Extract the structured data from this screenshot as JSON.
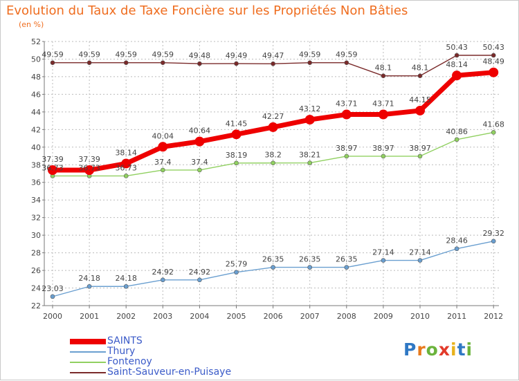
{
  "header": {
    "title": "Evolution du Taux de Taxe Foncière sur les Propriétés Non Bâties",
    "subtitle": "(en %)"
  },
  "logo": {
    "text": "Proxiti",
    "letters": [
      "P",
      "r",
      "o",
      "x",
      "i",
      "t",
      "i"
    ],
    "colors": [
      "#2f78c4",
      "#e87a1d",
      "#6bb33c",
      "#e23a2a",
      "#e8b21d",
      "#2f78c4",
      "#6bb33c"
    ]
  },
  "colors": {
    "axis": "#777777",
    "grid": "#bbbbbb",
    "label": "#444444"
  },
  "chart_data": {
    "type": "line",
    "title": "Evolution du Taux de Taxe Foncière sur les Propriétés Non Bâties",
    "ylabel": "(en %)",
    "xlabel": "",
    "ylim": [
      22,
      52
    ],
    "yticks": [
      22,
      24,
      26,
      28,
      30,
      32,
      34,
      36,
      38,
      40,
      42,
      44,
      46,
      48,
      50,
      52
    ],
    "categories": [
      "2000",
      "2001",
      "2002",
      "2003",
      "2004",
      "2005",
      "2006",
      "2007",
      "2008",
      "2009",
      "2010",
      "2011",
      "2012"
    ],
    "legend_position": "bottom-left",
    "series": [
      {
        "name": "Saint-Sauveur-en-Puisaye",
        "color": "#7a2a2a",
        "width": 1.4,
        "marker": 3,
        "values": [
          49.59,
          49.59,
          49.59,
          49.59,
          49.48,
          49.49,
          49.47,
          49.59,
          49.59,
          48.1,
          48.1,
          50.43,
          50.43
        ],
        "labels": [
          "49.59",
          "49.59",
          "49.59",
          "49.59",
          "49.48",
          "49.49",
          "49.47",
          "49.59",
          "49.59",
          "48.1",
          "48.1",
          "50.43",
          "50.43"
        ]
      },
      {
        "name": "Fontenoy",
        "color": "#90d060",
        "width": 1.4,
        "marker": 3,
        "values": [
          36.73,
          36.73,
          36.73,
          37.4,
          37.4,
          38.19,
          38.2,
          38.21,
          38.97,
          38.97,
          38.97,
          40.86,
          41.68
        ],
        "labels": [
          "36.73",
          "36.73",
          "36.73",
          "37.4",
          "37.4",
          "38.19",
          "38.2",
          "38.21",
          "38.97",
          "38.97",
          "38.97",
          "40.86",
          "41.68"
        ]
      },
      {
        "name": "Thury",
        "color": "#6a9fd0",
        "width": 1.4,
        "marker": 3,
        "values": [
          23.03,
          24.18,
          24.18,
          24.92,
          24.92,
          25.79,
          26.35,
          26.35,
          26.35,
          27.14,
          27.14,
          28.46,
          29.32
        ],
        "labels": [
          "23.03",
          "24.18",
          "24.18",
          "24.92",
          "24.92",
          "25.79",
          "26.35",
          "26.35",
          "26.35",
          "27.14",
          "27.14",
          "28.46",
          "29.32"
        ]
      },
      {
        "name": "SAINTS",
        "color": "#ee0000",
        "width": 7,
        "marker": 7,
        "values": [
          37.39,
          37.39,
          38.14,
          40.04,
          40.64,
          41.45,
          42.27,
          43.12,
          43.71,
          43.71,
          44.15,
          48.14,
          48.49
        ],
        "labels": [
          "37.39",
          "37.39",
          "38.14",
          "40.04",
          "40.64",
          "41.45",
          "42.27",
          "43.12",
          "43.71",
          "43.71",
          "44.15",
          "48.14",
          "48.49"
        ]
      }
    ]
  },
  "legend": [
    {
      "label": "SAINTS",
      "color": "#ee0000",
      "thick": true
    },
    {
      "label": "Thury",
      "color": "#6a9fd0",
      "thick": false
    },
    {
      "label": "Fontenoy",
      "color": "#90d060",
      "thick": false
    },
    {
      "label": "Saint-Sauveur-en-Puisaye",
      "color": "#7a2a2a",
      "thick": false
    }
  ]
}
